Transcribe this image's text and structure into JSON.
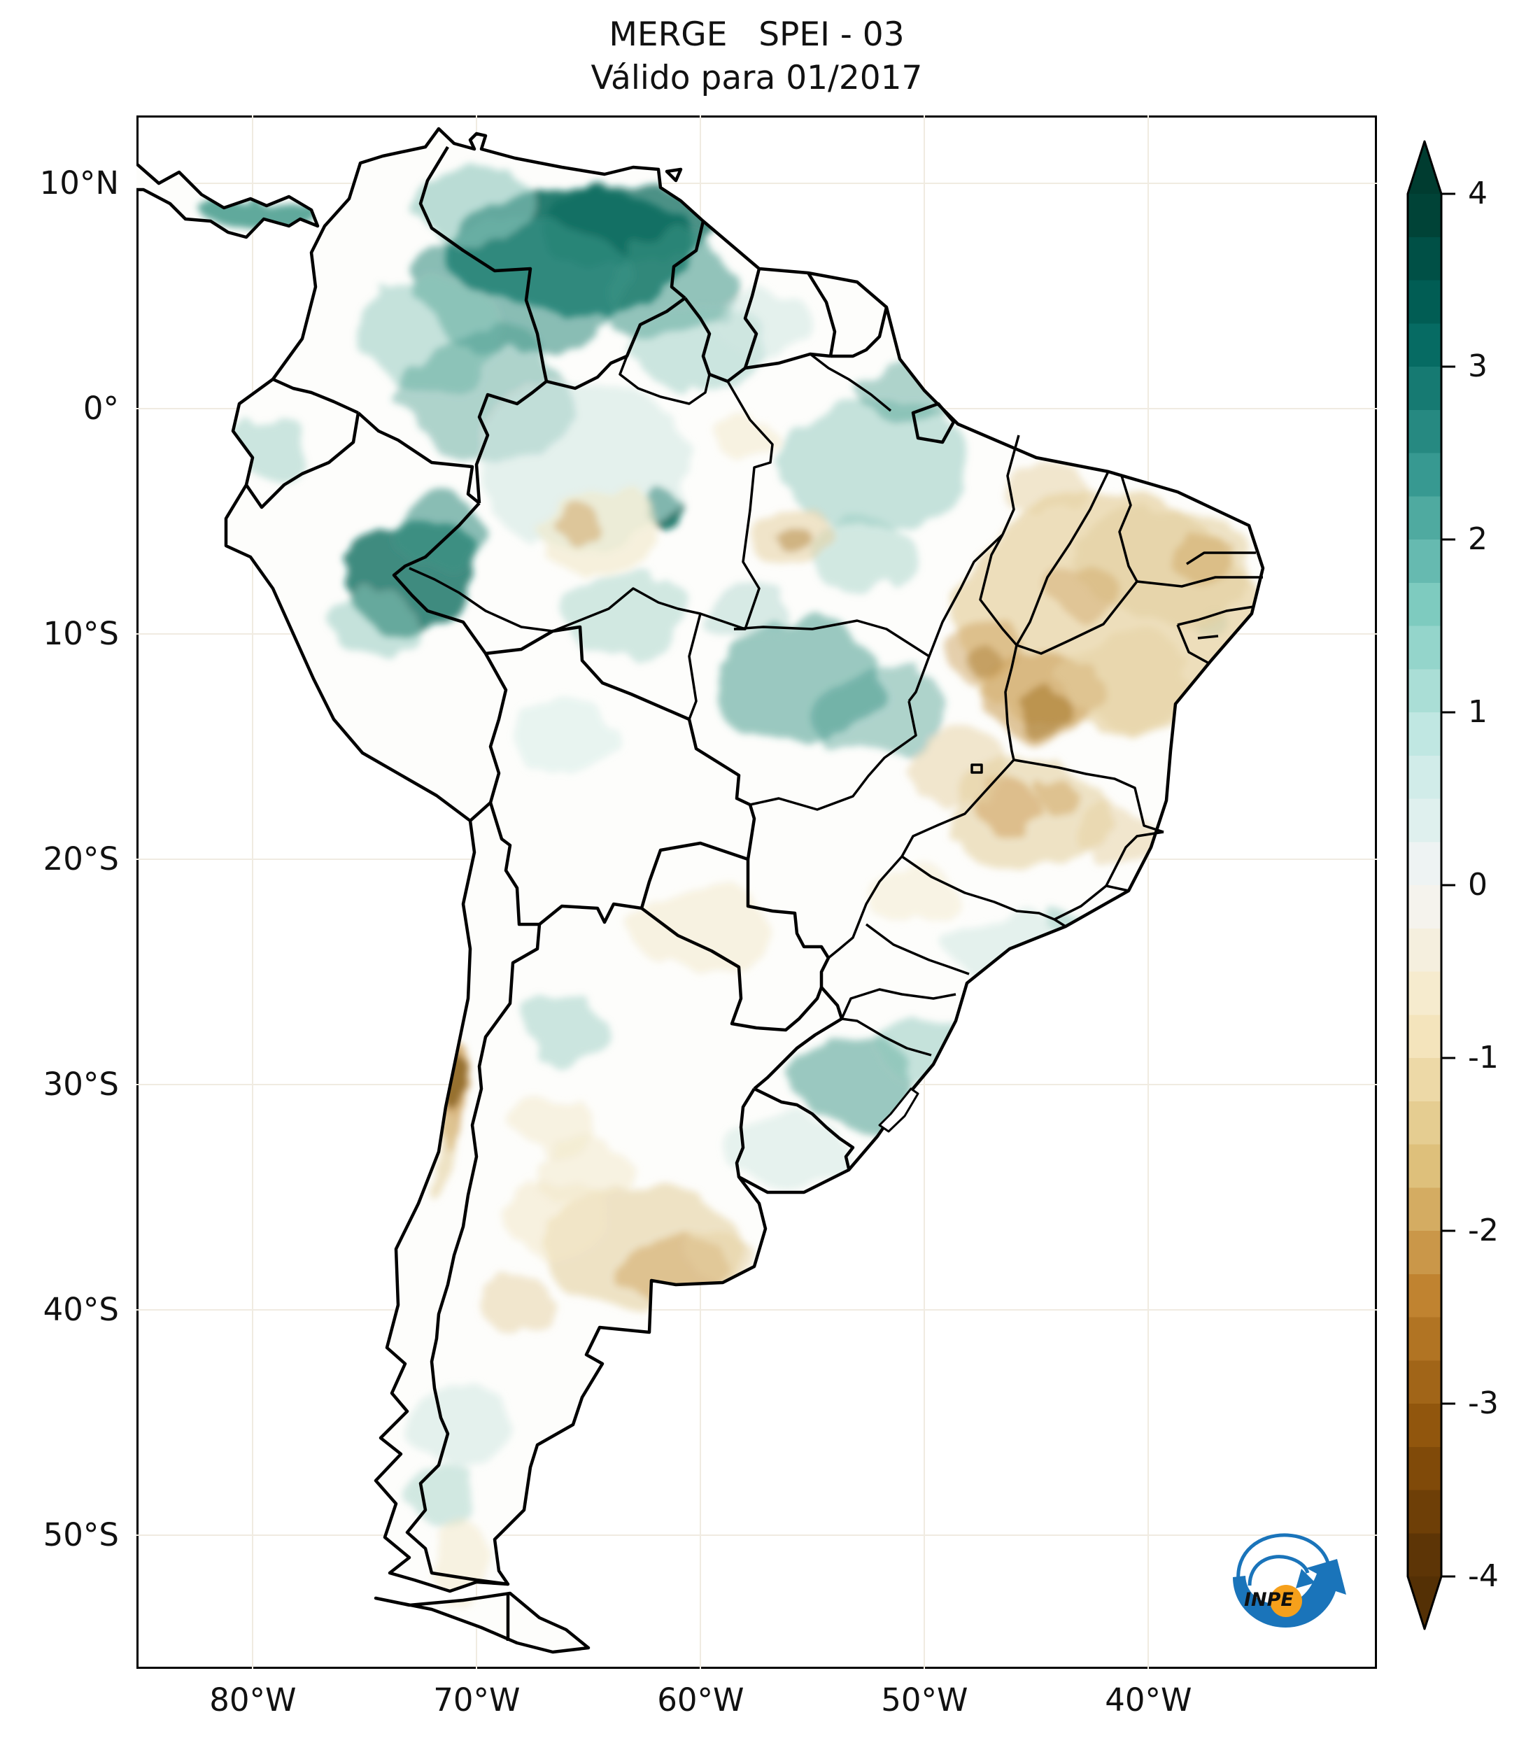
{
  "figure": {
    "title_line1": "MERGE   SPEI - 03",
    "title_line2": "Válido para 01/2017"
  },
  "axes": {
    "lat_ticks": [
      {
        "label": "10°N",
        "deg": 10
      },
      {
        "label": "0°",
        "deg": 0
      },
      {
        "label": "10°S",
        "deg": -10
      },
      {
        "label": "20°S",
        "deg": -20
      },
      {
        "label": "30°S",
        "deg": -30
      },
      {
        "label": "40°S",
        "deg": -40
      },
      {
        "label": "50°S",
        "deg": -50
      }
    ],
    "lon_ticks": [
      {
        "label": "80°W",
        "deg": -80
      },
      {
        "label": "70°W",
        "deg": -70
      },
      {
        "label": "60°W",
        "deg": -60
      },
      {
        "label": "50°W",
        "deg": -50
      },
      {
        "label": "40°W",
        "deg": -40
      }
    ]
  },
  "colorbar": {
    "tick_values": [
      4,
      3,
      2,
      1,
      0,
      -1,
      -2,
      -3,
      -4
    ],
    "tick_labels": [
      "4",
      "3",
      "2",
      "1",
      "0",
      "-1",
      "-2",
      "-3",
      "-4"
    ],
    "vmin": -4,
    "vmax": 4,
    "bands": 32,
    "colormap": "BrBG",
    "extend": "both",
    "anchor_colors_low_to_high": [
      "#543005",
      "#8c510a",
      "#bf812d",
      "#dfc27d",
      "#f6e8c3",
      "#f5f5f5",
      "#c7eae5",
      "#80cdc1",
      "#35978f",
      "#01665e",
      "#003c30"
    ]
  },
  "logo": {
    "label": "INPE",
    "blue": "#1a74ba",
    "orange": "#f6a01b"
  },
  "chart_data": {
    "type": "choropleth_map",
    "region": "South America",
    "product": "MERGE",
    "variable": "SPEI - 03",
    "valid_for": "01/2017",
    "value_range": [
      -4,
      4
    ],
    "map_extent": {
      "lon": [
        -85.2,
        -29.8
      ],
      "lat": [
        -55.9,
        13.0
      ]
    },
    "legend_position": "right",
    "notable_patterns": [
      "strong positive (wet, dark teal) anomaly over northern Venezuela and eastern Colombia llanos",
      "positive anomaly patch over western Amazon near Peru/Brazil border",
      "positive patches over central Mato Grosso and eastern Pará",
      "negative (dry, tan-brown) anomaly across northeast Brazil (Maranhão, Piauí, Ceará, Bahia, Tocantins)",
      "negative patches over Minas Gerais and Goiás",
      "negative anomaly over central Argentina pampas and along the north-central Chilean coast",
      "weak positive patches over Rio Grande do Sul, Uruguay and Patagonia"
    ]
  }
}
